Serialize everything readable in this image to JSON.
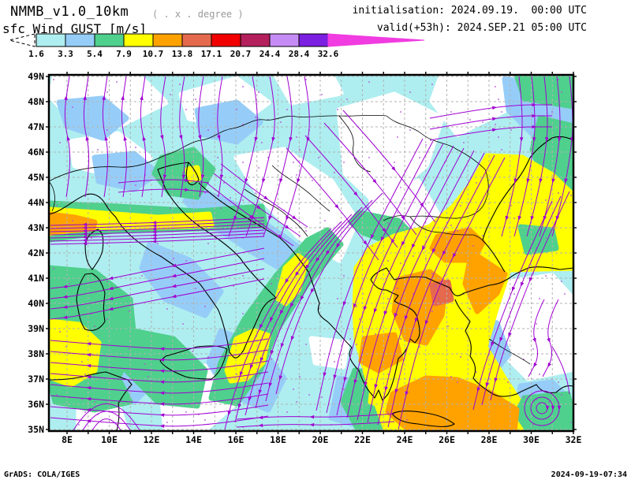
{
  "header": {
    "model_title": "NMMB_v1.0_10km",
    "grid_note": "( . x . degree )",
    "field_label": "sfc Wind GUST [m/s]",
    "init_line": "initialisation: 2024.09.19.  00:00 UTC",
    "valid_line": "valid(+53h): 2024.SEP.21 05:00 UTC"
  },
  "colorbar": {
    "tick_labels": [
      "1.6",
      "3.3",
      "5.4",
      "7.9",
      "10.7",
      "13.8",
      "17.1",
      "20.7",
      "24.4",
      "28.4",
      "32.6"
    ],
    "bin_colors": [
      "#aeeef0",
      "#96cdf8",
      "#4fd08d",
      "#ffff00",
      "#ffa200",
      "#e5694d",
      "#f20000",
      "#b4205c",
      "#c68cf6",
      "#7b1fe1"
    ],
    "under_color": "#ffffff",
    "over_color": "#f03ce0"
  },
  "map_axes": {
    "x_tick_labels": [
      "8E",
      "10E",
      "12E",
      "14E",
      "16E",
      "18E",
      "20E",
      "22E",
      "24E",
      "26E",
      "28E",
      "30E",
      "32E"
    ],
    "y_tick_labels": [
      "49N",
      "48N",
      "47N",
      "46N",
      "45N",
      "44N",
      "43N",
      "42N",
      "41N",
      "40N",
      "39N",
      "38N",
      "37N",
      "36N",
      "35N"
    ]
  },
  "map_style": {
    "streamline_color": "#a000d2",
    "gridline_color": "#b2b2b2",
    "coastline_color": "#000000",
    "background_color": "#ffffff"
  },
  "footer": {
    "credit": "GrADS: COLA/IGES",
    "datetime": "2024-09-19-07:34"
  },
  "chart_data": {
    "type": "heatmap",
    "title": "NMMB_v1.0_10km sfc Wind GUST [m/s]",
    "field": "surface wind gust with 10 m wind streamlines",
    "units": "m/s",
    "initialisation": "2024.09.19. 00:00 UTC",
    "valid": "2024.SEP.21 05:00 UTC (+53h)",
    "lon_range_deg_east": [
      8,
      32
    ],
    "lat_range_deg_north": [
      35,
      49
    ],
    "scale_levels_ms": [
      1.6,
      3.3,
      5.4,
      7.9,
      10.7,
      13.8,
      17.1,
      20.7,
      24.4,
      28.4,
      32.6
    ],
    "shade_bins": [
      {
        "range_ms": "< 1.6",
        "color": "white"
      },
      {
        "range_ms": "1.6-3.3",
        "color": "pale cyan"
      },
      {
        "range_ms": "3.3-5.4",
        "color": "light blue"
      },
      {
        "range_ms": "5.4-7.9",
        "color": "green"
      },
      {
        "range_ms": "7.9-10.7",
        "color": "yellow"
      },
      {
        "range_ms": "10.7-13.8",
        "color": "orange"
      },
      {
        "range_ms": "13.8-17.1",
        "color": "dark orange"
      },
      {
        "range_ms": "17.1-20.7",
        "color": "red"
      },
      {
        "range_ms": "20.7-24.4",
        "color": "crimson"
      },
      {
        "range_ms": "24.4-28.4",
        "color": "light purple"
      },
      {
        "range_ms": "28.4-32.6",
        "color": "violet"
      },
      {
        "range_ms": "> 32.6",
        "color": "magenta"
      }
    ],
    "notable_features": [
      {
        "region": "Gulf of Lion / Ligurian Sea ~43N 7-10E",
        "gust_ms": "10.7-13.8 orange core in yellow/green band, westward flow"
      },
      {
        "region": "West of Sardinia 37-39N 7-9E",
        "gust_ms": "7.9-10.7 yellow patch in green area"
      },
      {
        "region": "Sicily Channel to SE Adriatic diagonal band 16-19E 36-42N",
        "gust_ms": "7.9-10.7 yellow cores in green band"
      },
      {
        "region": "North Adriatic / Istria 13-15E 44-45N",
        "gust_ms": "5.4-7.9 green band, small yellow spot"
      },
      {
        "region": "Aegean Sea / Greece 22-27E 35-41N",
        "gust_ms": "10.7-13.8 widespread orange, local 13.8-17.1 spot near 25.5E 40.5N"
      },
      {
        "region": "SW Turkey coast band 26-30E 35-37N",
        "gust_ms": "10.7-13.8 orange band"
      },
      {
        "region": "W Black Sea coast / E Balkans 26-32E 41-44N",
        "gust_ms": "7.9-10.7 broad yellow area with green patches"
      },
      {
        "region": "cyclonic vortex near 30.5E 35.8N SE of Rhodes",
        "gust_ms": "closed circulation, 3.3-5.4"
      },
      {
        "region": "Central Turkey, central Balkans, central Italy, Alps",
        "gust_ms": "< 1.6 white areas"
      }
    ],
    "flow_summary": "Strong NE-to-SW streamline jet across the Aegean toward North Africa; northerly flow over the western Black Sea; westward zonal flow in the western Mediterranean south of 43N",
    "legend_position": "top-left horizontal color bar",
    "grid": "1-degree dashed gray graticule"
  }
}
